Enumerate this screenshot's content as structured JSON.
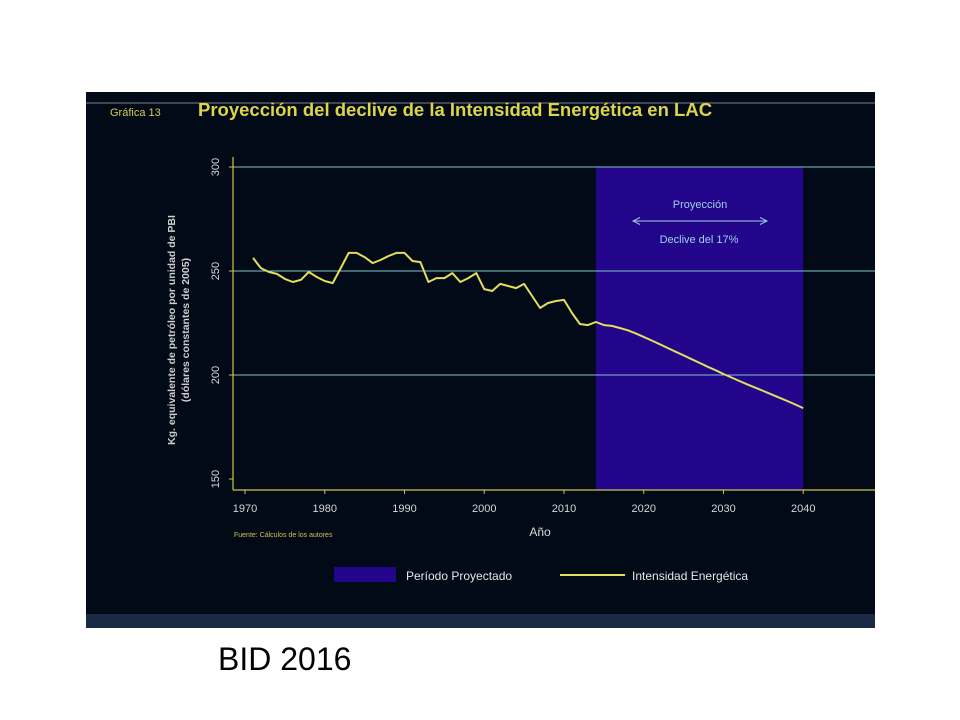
{
  "slide": {
    "caption": "BID 2016"
  },
  "colors": {
    "panel_background": "#020a17",
    "grid": "#7cc5c6",
    "axis": "#cdc44a",
    "annotation": "#9fd2e4"
  },
  "chart_data": {
    "type": "line",
    "figure_label": "Gráfica 13",
    "title": "Proyección del declive de la Intensidad Energética en LAC",
    "xlabel": "Año",
    "ylabel": [
      "Kg. equivalente de petróleo por unidad de PBI",
      "(dólares constantes de 2005)"
    ],
    "source": "Fuente: Cálculos de los autores",
    "xlim": [
      1970,
      2049
    ],
    "ylim": [
      150,
      300
    ],
    "xticks": [
      1970,
      1980,
      1990,
      2000,
      2010,
      2020,
      2030,
      2040
    ],
    "yticks": [
      150,
      200,
      250,
      300
    ],
    "grid": true,
    "shaded_region": {
      "name": "Período Proyectado",
      "x_start": 2014,
      "x_end": 2040,
      "color": "#23058c"
    },
    "annotations": [
      {
        "text": "Proyección"
      },
      {
        "text": "Declive del 17%"
      }
    ],
    "series": [
      {
        "name": "Intensidad Energética",
        "color": "#e4de5a",
        "x": [
          1971,
          1972,
          1973,
          1974,
          1975,
          1976,
          1977,
          1978,
          1979,
          1980,
          1981,
          1982,
          1983,
          1984,
          1985,
          1986,
          1987,
          1988,
          1989,
          1990,
          1991,
          1992,
          1993,
          1994,
          1995,
          1996,
          1997,
          1998,
          1999,
          2000,
          2001,
          2002,
          2003,
          2004,
          2005,
          2006,
          2007,
          2008,
          2009,
          2010,
          2011,
          2012,
          2013,
          2014,
          2015,
          2016,
          2017,
          2018,
          2019,
          2020,
          2021,
          2022,
          2023,
          2024,
          2025,
          2026,
          2027,
          2028,
          2029,
          2030,
          2031,
          2032,
          2033,
          2034,
          2035,
          2036,
          2037,
          2038,
          2039,
          2040
        ],
        "y": [
          256.3,
          251.4,
          249.5,
          248.6,
          246.2,
          244.7,
          245.7,
          249.5,
          247.1,
          245.2,
          244.2,
          251.4,
          258.7,
          258.7,
          256.7,
          253.8,
          255.3,
          257.2,
          258.7,
          258.7,
          254.8,
          254.3,
          244.7,
          246.6,
          246.6,
          249.0,
          244.7,
          246.6,
          249.0,
          241.3,
          240.4,
          243.8,
          242.8,
          241.8,
          243.8,
          238.0,
          232.2,
          234.6,
          235.6,
          236.1,
          229.8,
          224.5,
          224.0,
          225.5,
          224.0,
          223.6,
          222.6,
          221.5,
          220.0,
          218.3,
          216.6,
          214.8,
          213.0,
          211.2,
          209.4,
          207.6,
          205.8,
          204.0,
          202.3,
          200.5,
          198.8,
          197.1,
          195.5,
          193.9,
          192.3,
          190.7,
          189.1,
          187.5,
          185.8,
          184.1
        ]
      }
    ],
    "legend": {
      "position": "bottom"
    }
  }
}
